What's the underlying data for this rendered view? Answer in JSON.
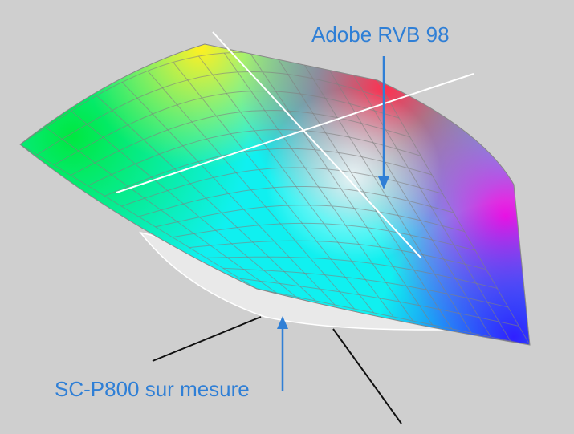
{
  "annotations": {
    "adobe": "Adobe RVB 98",
    "printer": "SC-P800 sur mesure"
  }
}
